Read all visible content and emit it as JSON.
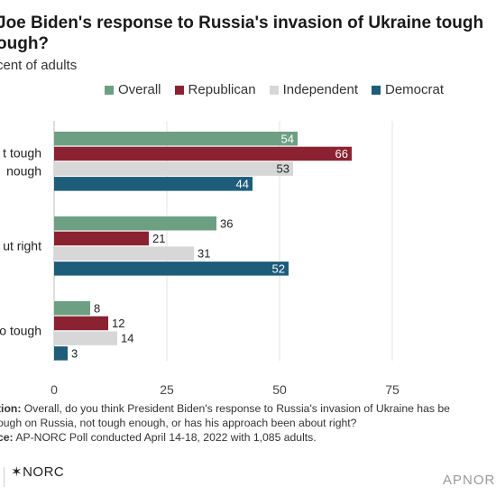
{
  "header": {
    "title": "Joe Biden's response to Russia's invasion of Ukraine tough\nough?",
    "subtitle": "cent of adults"
  },
  "legend": [
    {
      "label": "Overall",
      "color": "#6da083"
    },
    {
      "label": "Republican",
      "color": "#8b2232"
    },
    {
      "label": "Independent",
      "color": "#d7d7d7"
    },
    {
      "label": "Democrat",
      "color": "#1d5d7a"
    }
  ],
  "chart_data": {
    "type": "bar",
    "orientation": "horizontal",
    "categories": [
      "t tough\nnough",
      "ut right",
      "o tough"
    ],
    "series": [
      {
        "name": "Overall",
        "values": [
          54,
          36,
          8
        ],
        "color": "#6da083"
      },
      {
        "name": "Republican",
        "values": [
          66,
          21,
          12
        ],
        "color": "#8b2232"
      },
      {
        "name": "Independent",
        "values": [
          53,
          31,
          14
        ],
        "color": "#d7d7d7"
      },
      {
        "name": "Democrat",
        "values": [
          44,
          52,
          3
        ],
        "color": "#1d5d7a"
      }
    ],
    "xlim": [
      0,
      75
    ],
    "xticks": [
      0,
      25,
      50,
      75
    ],
    "grid": true,
    "legend_position": "top"
  },
  "notes": {
    "question_label": "tion:",
    "question_text": "  Overall, do you think President Biden's response to Russia's invasion of Ukraine has be",
    "question_text_2": "ough on Russia, not tough enough, or has his approach been about right?",
    "source_label": "ce:",
    "source_text": " AP-NORC Poll conducted April 14-18, 2022 with 1,085 adults."
  },
  "footer": {
    "norc_logo": "✶NORC",
    "apnorc_logo": "APNORC"
  }
}
